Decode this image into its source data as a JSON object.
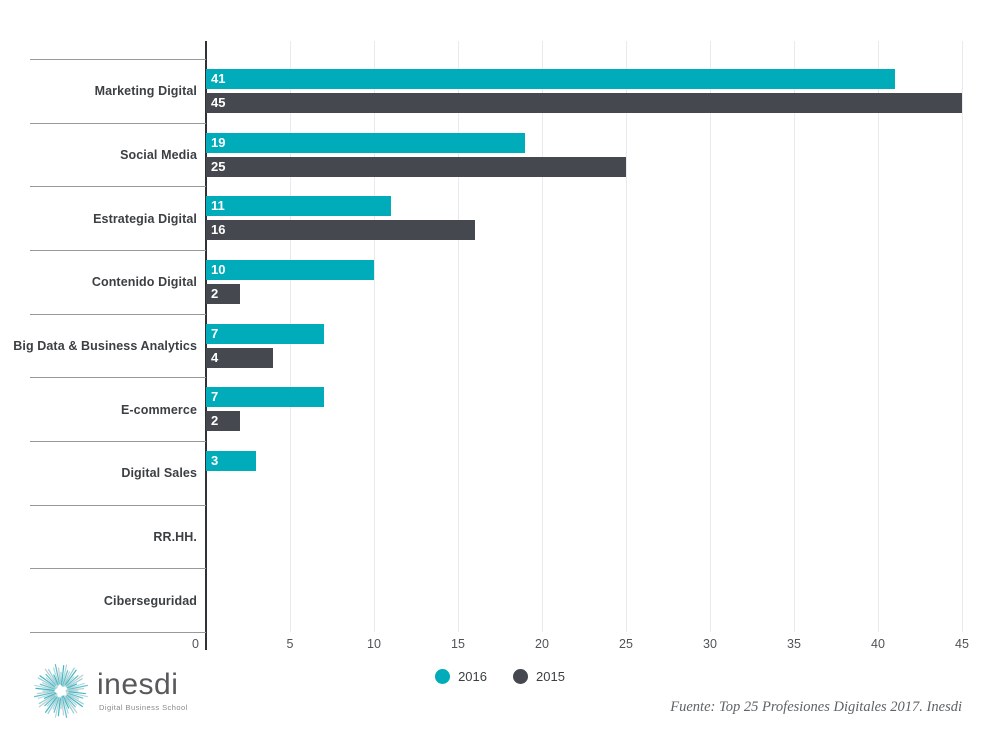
{
  "chart_data": {
    "type": "bar",
    "orientation": "horizontal",
    "title": "",
    "categories": [
      "Marketing Digital",
      "Social Media",
      "Estrategia Digital",
      "Contenido Digital",
      "Big Data & Business Analytics",
      "E-commerce",
      "Digital Sales",
      "RR.HH.",
      "Ciberseguridad"
    ],
    "series": [
      {
        "name": "2016",
        "color": "#00ABBA",
        "values": [
          41,
          19,
          11,
          10,
          7,
          7,
          3,
          null,
          null
        ]
      },
      {
        "name": "2015",
        "color": "#45484F",
        "values": [
          45,
          25,
          16,
          2,
          4,
          2,
          null,
          null,
          null
        ]
      }
    ],
    "xlim": [
      0,
      45
    ],
    "xticks": [
      0,
      5,
      10,
      15,
      20,
      25,
      30,
      35,
      40,
      45
    ],
    "grid": "vertical-light",
    "legend_position": "bottom-center",
    "value_labels": "inside-start"
  },
  "footer": {
    "source": "Fuente: Top 25 Profesiones Digitales 2017. Inesdi"
  },
  "logo": {
    "name": "inesdi",
    "tagline": "Digital Business School"
  },
  "colors": {
    "series_2016": "#00ABBA",
    "series_2015": "#45484F",
    "axis": "#2F3237",
    "gridline": "#E8EAEB",
    "separator": "#97999C",
    "category_label": "#3C4043",
    "value_label": "#FFFFFF"
  }
}
